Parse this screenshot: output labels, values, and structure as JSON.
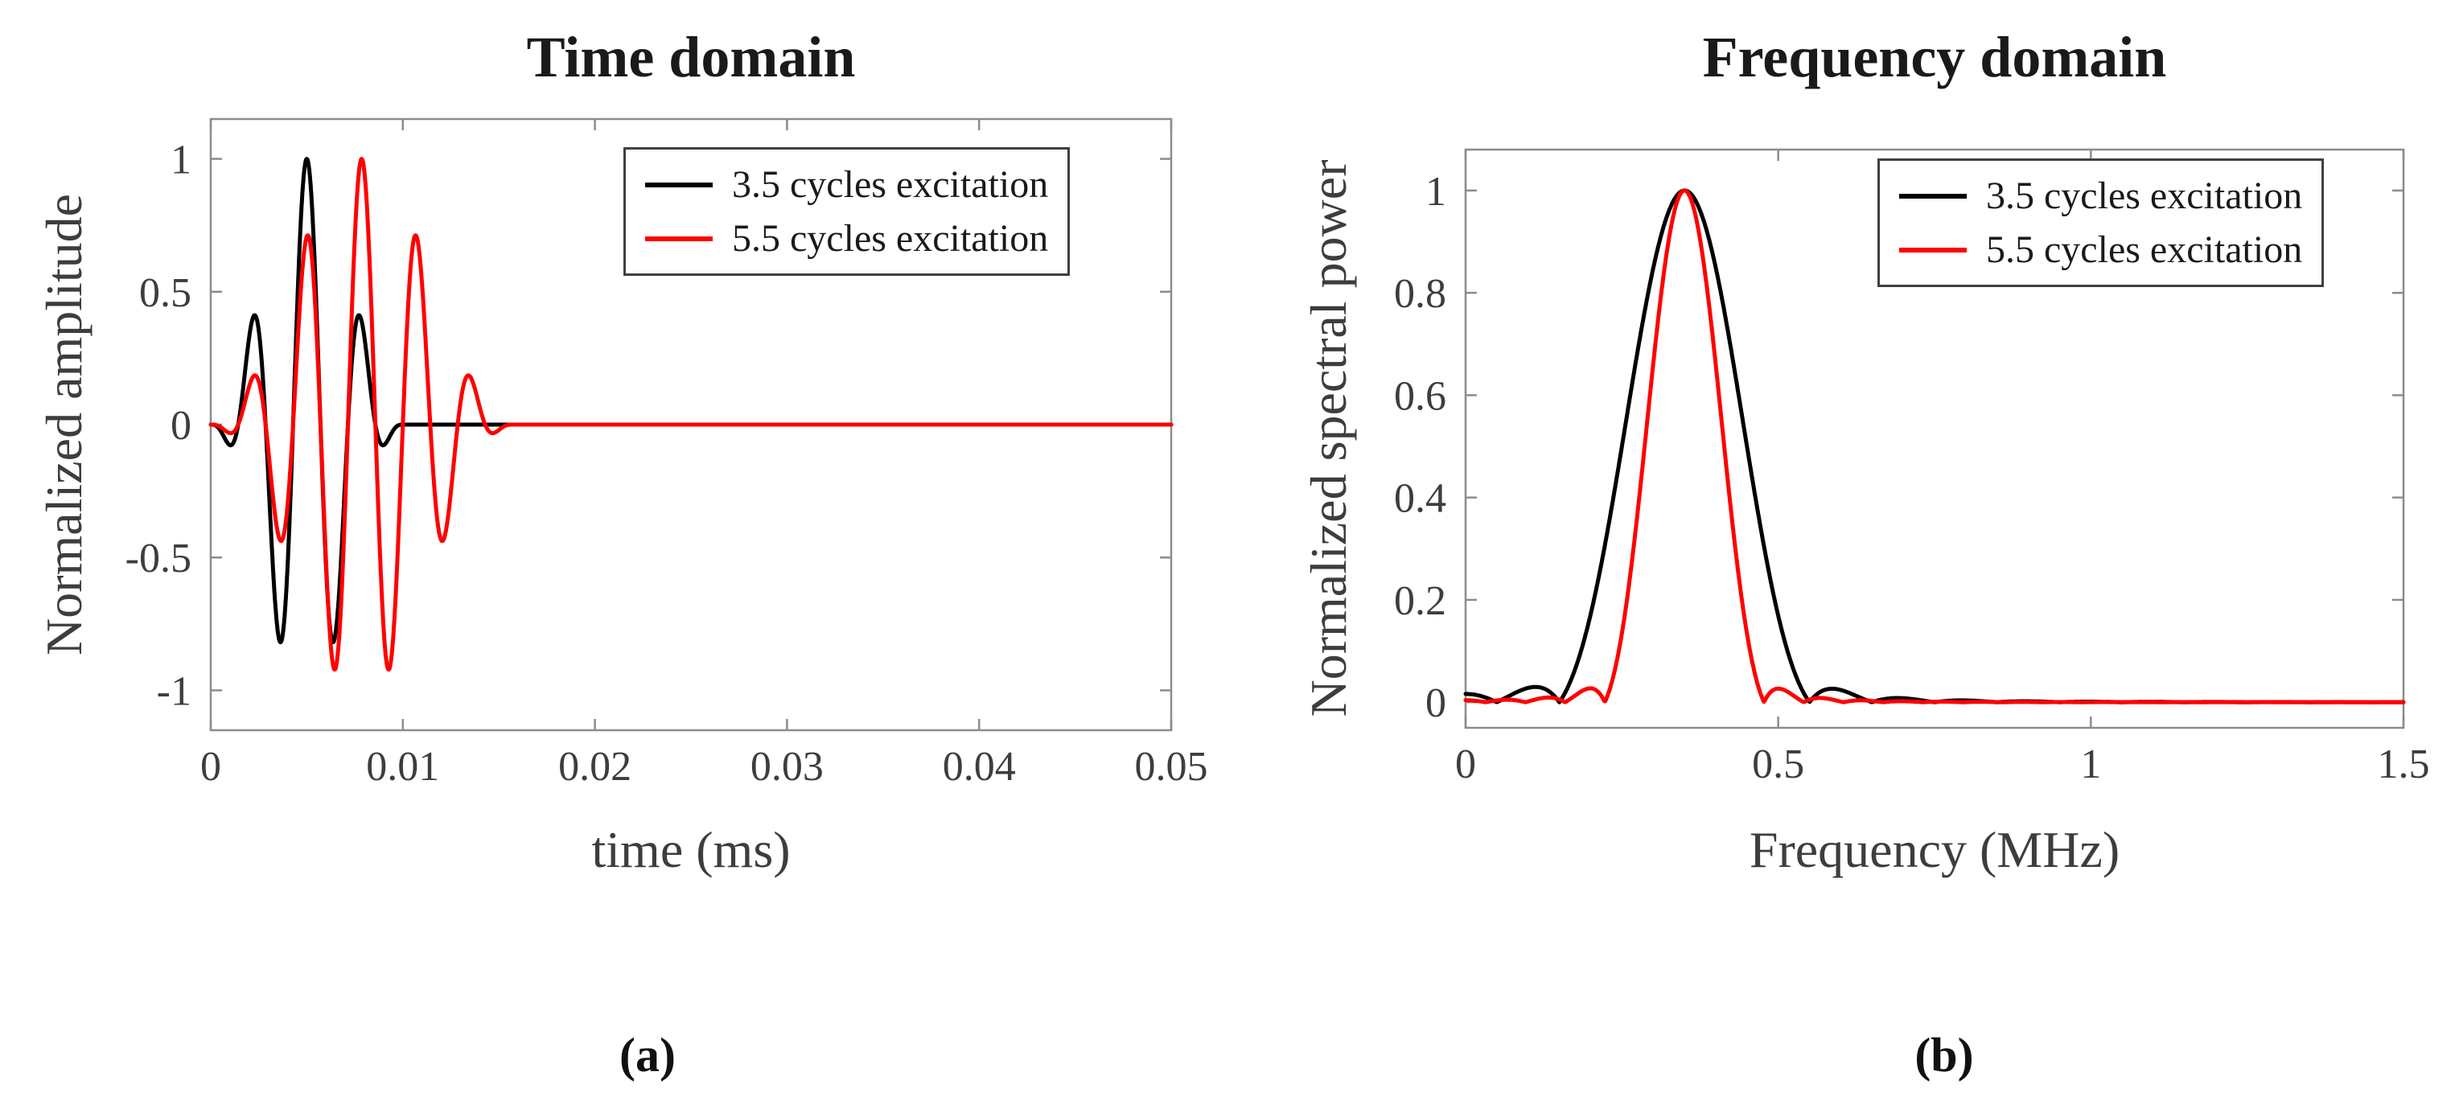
{
  "style": {
    "background": "#ffffff",
    "axes_color": "#8c8c8c",
    "tick_label_color": "#3d3d3d",
    "label_color": "#3d3d3d",
    "title_color": "#1a1a1a",
    "legend_border_color": "#404040",
    "legend_background": "#ffffff",
    "series_black": "#000000",
    "series_red": "#ff0000"
  },
  "chart_data": [
    {
      "id": "time-domain",
      "type": "line",
      "title": "Time domain",
      "caption": "(a)",
      "xlabel": "time (ms)",
      "ylabel": "Normalized amplitude",
      "xlim": [
        0,
        0.05
      ],
      "ylim": [
        -1.15,
        1.15
      ],
      "xticks": [
        0,
        0.01,
        0.02,
        0.03,
        0.04,
        0.05
      ],
      "xtick_labels": [
        "0",
        "0.01",
        "0.02",
        "0.03",
        "0.04",
        "0.05"
      ],
      "yticks": [
        -1,
        -0.5,
        0,
        0.5,
        1
      ],
      "ytick_labels": [
        "-1",
        "-0.5",
        "0",
        "0.5",
        "1"
      ],
      "grid": false,
      "legend_position": "top-right",
      "series": [
        {
          "name": "3.5 cycles excitation",
          "color": "#000000",
          "model": {
            "kind": "hann_toneburst",
            "center_frequency_mhz": 0.35,
            "cycles": 3.5,
            "polarity": -1,
            "burst_duration_ms": 0.01
          },
          "keypoints_t_ms_amplitude": [
            [
              0,
              0
            ],
            [
              0.00071,
              -0.05
            ],
            [
              0.00214,
              0.39
            ],
            [
              0.00357,
              -0.81
            ],
            [
              0.005,
              1.0
            ],
            [
              0.00643,
              -0.81
            ],
            [
              0.00786,
              0.39
            ],
            [
              0.00929,
              -0.05
            ],
            [
              0.01,
              0
            ],
            [
              0.05,
              0
            ]
          ]
        },
        {
          "name": "5.5 cycles excitation",
          "color": "#ff0000",
          "model": {
            "kind": "hann_toneburst",
            "center_frequency_mhz": 0.35,
            "cycles": 5.5,
            "polarity": -1,
            "burst_duration_ms": 0.0157
          },
          "keypoints_t_ms_amplitude": [
            [
              0,
              0
            ],
            [
              0.00214,
              0.17
            ],
            [
              0.00357,
              -0.43
            ],
            [
              0.005,
              0.71
            ],
            [
              0.00643,
              -0.92
            ],
            [
              0.00786,
              1.0
            ],
            [
              0.00929,
              -0.92
            ],
            [
              0.01071,
              0.71
            ],
            [
              0.01214,
              -0.43
            ],
            [
              0.01357,
              0.17
            ],
            [
              0.0157,
              0
            ],
            [
              0.05,
              0
            ]
          ]
        }
      ]
    },
    {
      "id": "frequency-domain",
      "type": "line",
      "title": "Frequency domain",
      "caption": "(b)",
      "xlabel": "Frequency (MHz)",
      "ylabel": "Normalized spectral power",
      "xlim": [
        0,
        1.5
      ],
      "ylim": [
        -0.05,
        1.08
      ],
      "xticks": [
        0,
        0.5,
        1,
        1.5
      ],
      "xtick_labels": [
        "0",
        "0.5",
        "1",
        "1.5"
      ],
      "yticks": [
        0,
        0.2,
        0.4,
        0.6,
        0.8,
        1
      ],
      "ytick_labels": [
        "0",
        "0.2",
        "0.4",
        "0.6",
        "0.8",
        "1"
      ],
      "grid": false,
      "legend_position": "top-right",
      "series": [
        {
          "name": "3.5 cycles excitation",
          "color": "#000000",
          "model": {
            "kind": "hann_toneburst_spectrum",
            "center_frequency_mhz": 0.35,
            "cycles": 3.5
          },
          "keypoints_f_mhz_power": [
            [
              0,
              0.016
            ],
            [
              0.1,
              0.028
            ],
            [
              0.15,
              0
            ],
            [
              0.25,
              0.5
            ],
            [
              0.35,
              1.0
            ],
            [
              0.45,
              0.5
            ],
            [
              0.55,
              0
            ],
            [
              0.6,
              0.024
            ],
            [
              0.75,
              0.004
            ],
            [
              1.0,
              0.001
            ],
            [
              1.5,
              0.001
            ]
          ]
        },
        {
          "name": "5.5 cycles excitation",
          "color": "#ff0000",
          "model": {
            "kind": "hann_toneburst_spectrum",
            "center_frequency_mhz": 0.35,
            "cycles": 5.5
          },
          "keypoints_f_mhz_power": [
            [
              0,
              0.007
            ],
            [
              0.2,
              0.027
            ],
            [
              0.223,
              0
            ],
            [
              0.286,
              0.5
            ],
            [
              0.35,
              1.0
            ],
            [
              0.414,
              0.5
            ],
            [
              0.477,
              0
            ],
            [
              0.5,
              0.027
            ],
            [
              0.6,
              0.003
            ],
            [
              1.0,
              0.0005
            ],
            [
              1.5,
              0.0005
            ]
          ]
        }
      ]
    }
  ]
}
